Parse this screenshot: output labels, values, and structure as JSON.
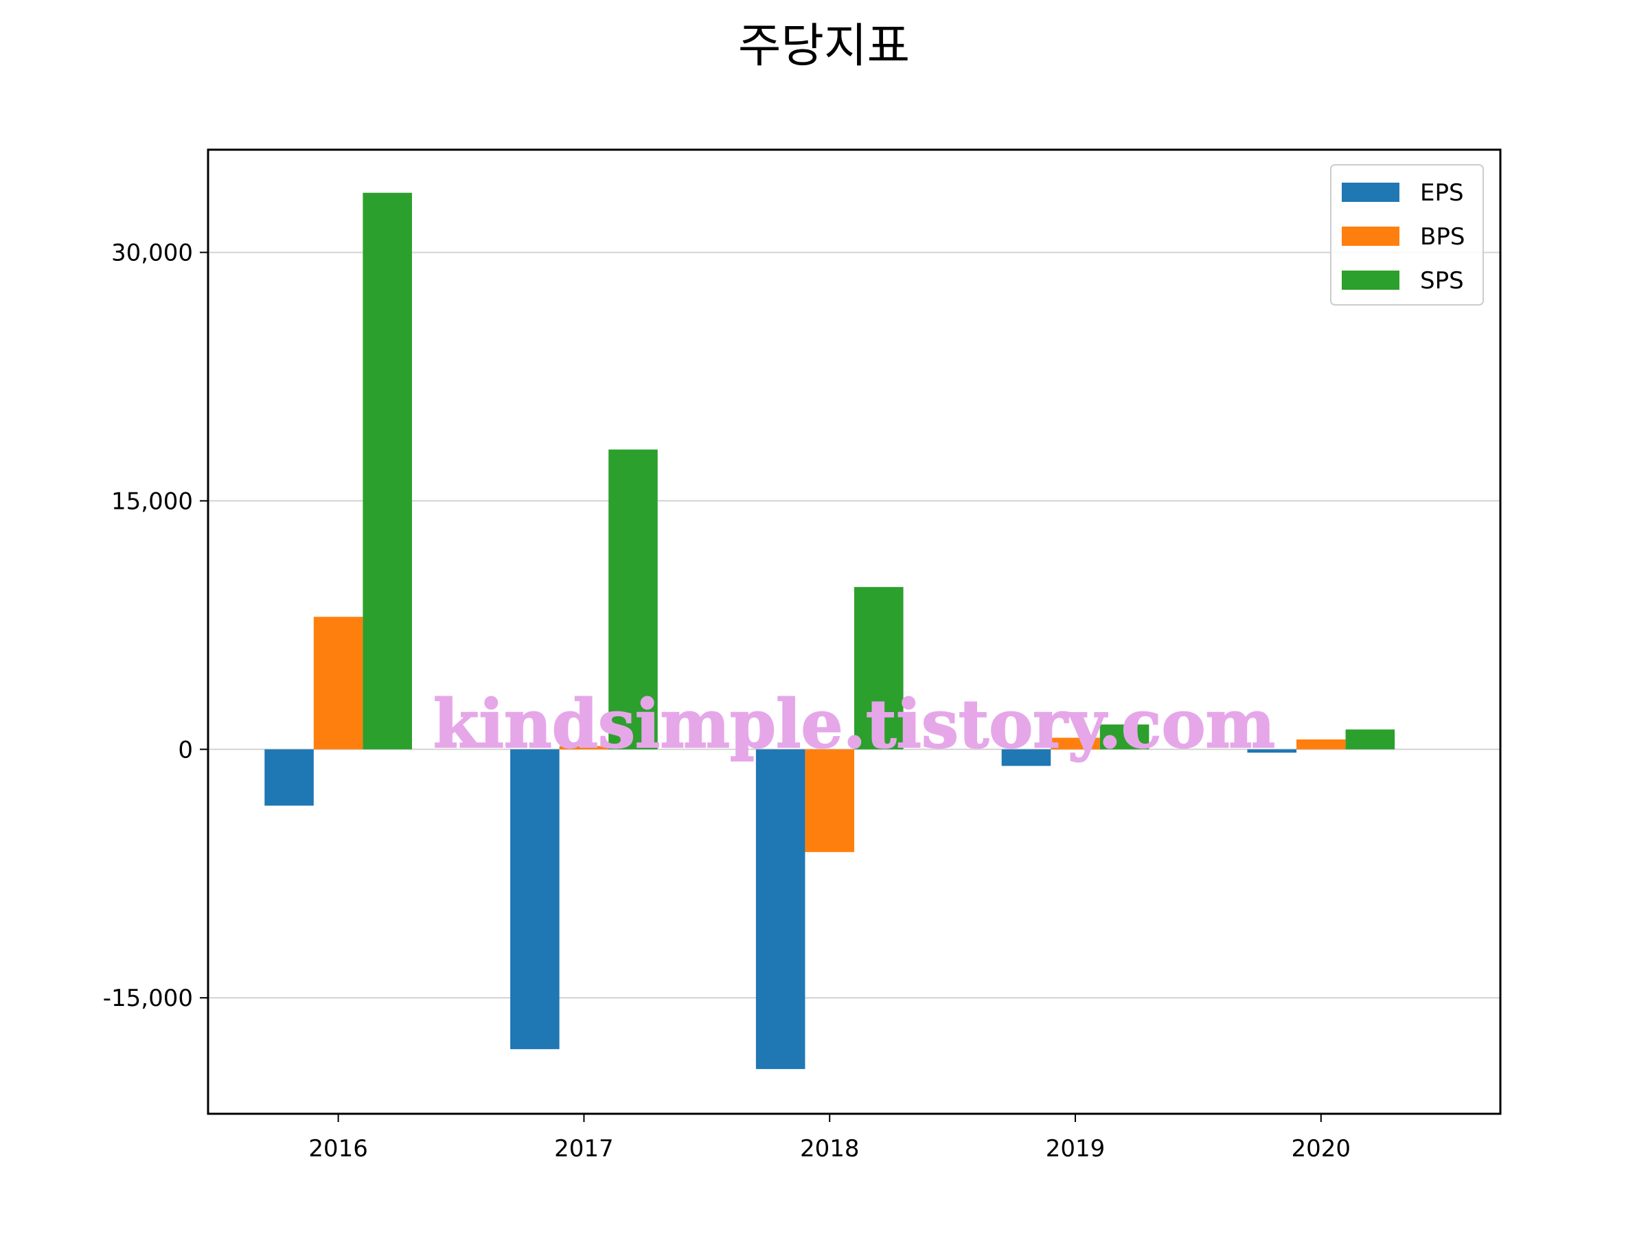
{
  "chart_data": {
    "type": "bar",
    "title": "주당지표",
    "xlabel": "",
    "ylabel": "",
    "categories": [
      "2016",
      "2017",
      "2018",
      "2019",
      "2020"
    ],
    "series": [
      {
        "name": "EPS",
        "color": "#1f77b4",
        "values": [
          -3400,
          -18100,
          -19300,
          -1000,
          -200
        ]
      },
      {
        "name": "BPS",
        "color": "#ff7f0e",
        "values": [
          8000,
          200,
          -6200,
          700,
          600
        ]
      },
      {
        "name": "SPS",
        "color": "#2ca02c",
        "values": [
          33600,
          18100,
          9800,
          1500,
          1200
        ]
      }
    ],
    "ylim": [
      -22000,
      36200
    ],
    "yticks": [
      -15000,
      0,
      15000,
      30000
    ],
    "ytick_labels": [
      "-15,000",
      "0",
      "15,000",
      "30,000"
    ],
    "grid": true,
    "legend": "top-right",
    "watermark": "kindsimple.tistory.com"
  }
}
